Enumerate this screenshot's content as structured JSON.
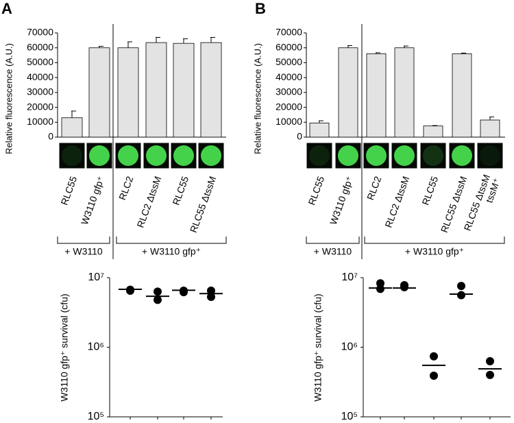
{
  "chart_data": [
    {
      "type": "bar",
      "panel": "A",
      "ylabel": "Relative fluorescence  (A.U.)",
      "categories": [
        "RLC55",
        "W3110 gfp⁺",
        "RLC2",
        "RLC2 ΔtssM",
        "RLC55",
        "RLC55 ΔtssM"
      ],
      "values": [
        13000,
        60000,
        60000,
        63500,
        63000,
        63500
      ],
      "errors": [
        4500,
        1000,
        4000,
        3500,
        3000,
        3500
      ],
      "color": "#e3e3e3",
      "ylim": [
        0,
        70000
      ],
      "yticks": [
        0,
        10000,
        20000,
        30000,
        40000,
        50000,
        60000,
        70000
      ],
      "groups": [
        "+ W3110",
        "+ W3110 gfp⁺"
      ]
    },
    {
      "type": "bar",
      "panel": "B",
      "ylabel": "Relative fluorescence  (A.U.)",
      "categories": [
        "RLC55",
        "W3110 gfp⁺",
        "RLC2",
        "RLC2 ΔtssM",
        "RLC55",
        "RLC55 ΔtssM",
        [
          "RLC55 ΔtssM",
          "tssM⁺"
        ]
      ],
      "values": [
        9500,
        60000,
        56000,
        60000,
        7500,
        56000,
        11500
      ],
      "errors": [
        1500,
        1500,
        700,
        1200,
        300,
        500,
        2000
      ],
      "color": "#e3e3e3",
      "ylim": [
        0,
        70000
      ],
      "yticks": [
        0,
        10000,
        20000,
        30000,
        40000,
        50000,
        60000,
        70000
      ],
      "groups": [
        "+ W3110",
        "+ W3110 gfp⁺"
      ]
    },
    {
      "type": "dot",
      "ylabel": "W3110 gfp⁺ survival (cfu)",
      "log_scale": true,
      "color": "#000000",
      "categories": [
        null,
        null,
        null,
        null
      ],
      "medians": [
        6800000,
        5400000,
        6600000,
        5900000
      ],
      "points": [
        [
          6500000,
          6700000
        ],
        [
          6300000,
          4800000
        ],
        [
          6500000,
          6200000
        ],
        [
          6500000,
          5300000
        ]
      ],
      "ylim": [
        100000,
        10000000
      ],
      "yticks": [
        {
          "value": 100000,
          "label": "10⁵"
        },
        {
          "value": 1000000,
          "label": "10⁶"
        },
        {
          "value": 10000000,
          "label": "10⁷"
        }
      ]
    },
    {
      "type": "dot",
      "ylabel": "W3110 gfp⁺ survival (cfu)",
      "log_scale": true,
      "color": "#000000",
      "categories": [
        null,
        null,
        null,
        null,
        null
      ],
      "medians": [
        7100000,
        7100000,
        550000,
        5800000,
        490000
      ],
      "points": [
        [
          8300000,
          6900000
        ],
        [
          7800000,
          7300000
        ],
        [
          740000,
          390000
        ],
        [
          7600000,
          5600000
        ],
        [
          630000,
          400000
        ]
      ],
      "ylim": [
        100000,
        10000000
      ],
      "yticks": [
        {
          "value": 100000,
          "label": "10⁵"
        },
        {
          "value": 1000000,
          "label": "10⁶"
        },
        {
          "value": 10000000,
          "label": "10⁷"
        }
      ]
    }
  ]
}
